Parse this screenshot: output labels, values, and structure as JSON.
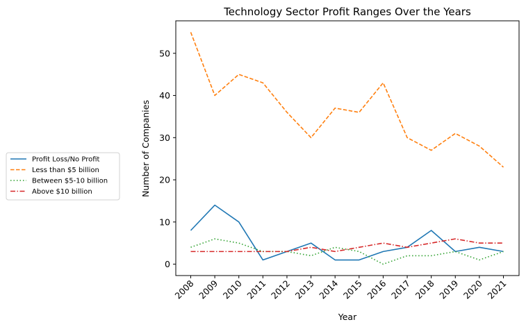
{
  "chart_data": {
    "type": "line",
    "title": "Technology Sector Profit Ranges Over the Years",
    "xlabel": "Year",
    "ylabel": "Number of Companies",
    "x": [
      "2008",
      "2009",
      "2010",
      "2011",
      "2012",
      "2013",
      "2014",
      "2015",
      "2016",
      "2017",
      "2018",
      "2019",
      "2020",
      "2021"
    ],
    "yticks": [
      0,
      10,
      20,
      30,
      40,
      50
    ],
    "ylim": [
      -2.7,
      57.7
    ],
    "grid": false,
    "legend_position": "left-outside",
    "series": [
      {
        "name": "Profit Loss/No Profit",
        "color": "#1f77b4",
        "dash": "solid",
        "values": [
          8,
          14,
          10,
          1,
          3,
          5,
          1,
          1,
          3,
          4,
          8,
          3,
          4,
          3
        ]
      },
      {
        "name": "Less than $5 billion",
        "color": "#ff7f0e",
        "dash": "dashed",
        "values": [
          55,
          40,
          45,
          43,
          36,
          30,
          37,
          36,
          43,
          30,
          27,
          31,
          28,
          23
        ]
      },
      {
        "name": "Between $5-10 billion",
        "color": "#2ca02c",
        "dash": "dotted",
        "values": [
          4,
          6,
          5,
          3,
          3,
          2,
          4,
          3,
          0,
          2,
          2,
          3,
          1,
          3
        ]
      },
      {
        "name": "Above $10 billion",
        "color": "#d62728",
        "dash": "dashdot",
        "values": [
          3,
          3,
          3,
          3,
          3,
          4,
          3,
          4,
          5,
          4,
          5,
          6,
          5,
          5
        ]
      }
    ]
  }
}
